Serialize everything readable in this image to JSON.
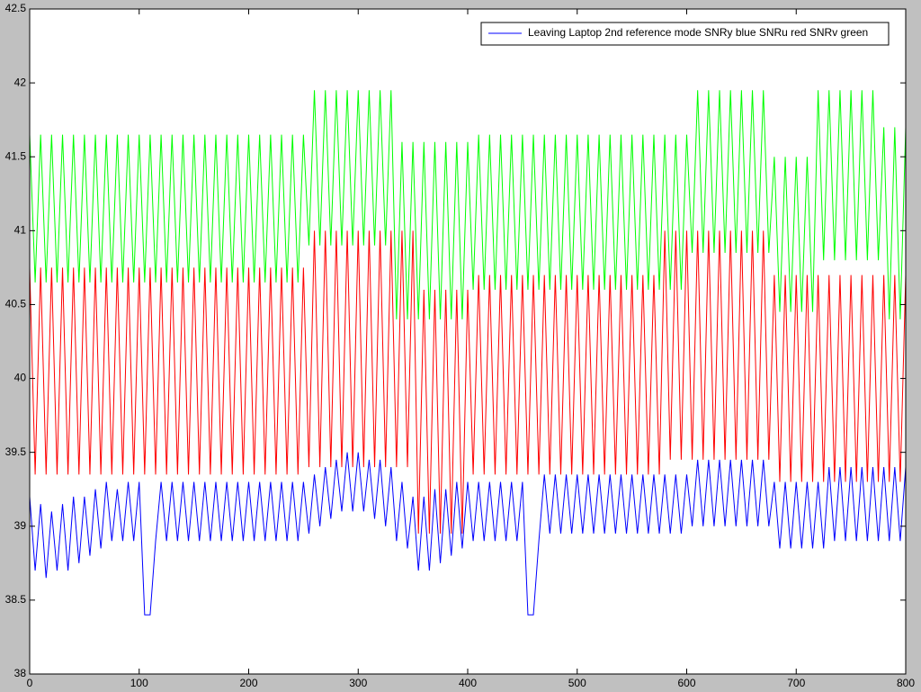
{
  "chart_data": {
    "type": "line",
    "xlim": [
      0,
      800
    ],
    "xticks": [
      0,
      100,
      200,
      300,
      400,
      500,
      600,
      700,
      800
    ],
    "ylim": [
      38,
      42.5
    ],
    "yticks": [
      38,
      38.5,
      39,
      39.5,
      40,
      40.5,
      41,
      41.5,
      42,
      42.5
    ],
    "legend": "upper right",
    "x": [
      0,
      5,
      10,
      15,
      20,
      25,
      30,
      35,
      40,
      45,
      50,
      55,
      60,
      65,
      70,
      75,
      80,
      85,
      90,
      95,
      100,
      105,
      110,
      115,
      120,
      125,
      130,
      135,
      140,
      145,
      150,
      155,
      160,
      165,
      170,
      175,
      180,
      185,
      190,
      195,
      200,
      205,
      210,
      215,
      220,
      225,
      230,
      235,
      240,
      245,
      250,
      255,
      260,
      265,
      270,
      275,
      280,
      285,
      290,
      295,
      300,
      305,
      310,
      315,
      320,
      325,
      330,
      335,
      340,
      345,
      350,
      355,
      360,
      365,
      370,
      375,
      380,
      385,
      390,
      395,
      400,
      405,
      410,
      415,
      420,
      425,
      430,
      435,
      440,
      445,
      450,
      455,
      460,
      465,
      470,
      475,
      480,
      485,
      490,
      495,
      500,
      505,
      510,
      515,
      520,
      525,
      530,
      535,
      540,
      545,
      550,
      555,
      560,
      565,
      570,
      575,
      580,
      585,
      590,
      595,
      600,
      605,
      610,
      615,
      620,
      625,
      630,
      635,
      640,
      645,
      650,
      655,
      660,
      665,
      670,
      675,
      680,
      685,
      690,
      695,
      700,
      705,
      710,
      715,
      720,
      725,
      730,
      735,
      740,
      745,
      750,
      755,
      760,
      765,
      770,
      775,
      780,
      785,
      790,
      795,
      800
    ],
    "series": [
      {
        "name": "Leaving Laptop 2nd reference mode SNRy blue SNRu red SNRv green",
        "color": "#0000ff",
        "values": [
          39.2,
          38.7,
          39.15,
          38.65,
          39.1,
          38.7,
          39.15,
          38.7,
          39.2,
          38.75,
          39.2,
          38.8,
          39.25,
          38.85,
          39.3,
          38.9,
          39.25,
          38.9,
          39.3,
          38.9,
          39.3,
          38.4,
          38.4,
          38.9,
          39.3,
          38.9,
          39.3,
          38.9,
          39.3,
          38.9,
          39.3,
          38.9,
          39.3,
          38.9,
          39.3,
          38.9,
          39.3,
          38.9,
          39.3,
          38.9,
          39.3,
          38.9,
          39.3,
          38.9,
          39.3,
          38.9,
          39.3,
          38.9,
          39.3,
          38.9,
          39.3,
          38.95,
          39.35,
          39.0,
          39.4,
          39.05,
          39.45,
          39.1,
          39.5,
          39.1,
          39.5,
          39.1,
          39.45,
          39.05,
          39.45,
          39.0,
          39.4,
          38.9,
          39.3,
          38.85,
          39.2,
          38.7,
          39.2,
          38.7,
          39.25,
          38.75,
          39.25,
          38.8,
          39.3,
          38.85,
          39.3,
          38.9,
          39.3,
          38.9,
          39.3,
          38.9,
          39.3,
          38.9,
          39.3,
          38.9,
          39.3,
          38.4,
          38.4,
          38.9,
          39.35,
          38.95,
          39.35,
          38.95,
          39.35,
          38.95,
          39.35,
          38.95,
          39.35,
          38.95,
          39.35,
          38.95,
          39.35,
          38.95,
          39.35,
          38.95,
          39.35,
          38.95,
          39.35,
          38.95,
          39.35,
          38.95,
          39.35,
          38.95,
          39.35,
          38.95,
          39.35,
          39.0,
          39.45,
          39.0,
          39.45,
          39.0,
          39.45,
          39.0,
          39.45,
          39.0,
          39.45,
          39.0,
          39.45,
          39.0,
          39.45,
          39.0,
          39.3,
          38.85,
          39.3,
          38.85,
          39.3,
          38.85,
          39.3,
          38.85,
          39.3,
          38.85,
          39.4,
          38.9,
          39.4,
          38.9,
          39.4,
          38.9,
          39.4,
          38.9,
          39.4,
          38.9,
          39.4,
          38.9,
          39.4,
          38.9,
          39.4
        ]
      },
      {
        "color": "#ff0000",
        "values": [
          40.75,
          39.35,
          40.75,
          39.35,
          40.75,
          39.35,
          40.75,
          39.35,
          40.75,
          39.35,
          40.75,
          39.35,
          40.75,
          39.35,
          40.75,
          39.35,
          40.75,
          39.35,
          40.75,
          39.35,
          40.75,
          39.35,
          40.75,
          39.35,
          40.75,
          39.35,
          40.75,
          39.35,
          40.75,
          39.35,
          40.75,
          39.35,
          40.75,
          39.35,
          40.75,
          39.35,
          40.75,
          39.35,
          40.75,
          39.35,
          40.75,
          39.35,
          40.75,
          39.35,
          40.75,
          39.35,
          40.75,
          39.35,
          40.75,
          39.35,
          40.75,
          39.4,
          41.0,
          39.4,
          41.0,
          39.4,
          41.0,
          39.4,
          41.0,
          39.4,
          41.0,
          39.4,
          41.0,
          39.4,
          41.0,
          39.4,
          41.0,
          39.4,
          41.0,
          39.4,
          41.0,
          38.95,
          40.6,
          38.95,
          40.6,
          38.95,
          40.6,
          38.95,
          40.6,
          38.95,
          40.6,
          39.35,
          40.7,
          39.35,
          40.7,
          39.35,
          40.7,
          39.35,
          40.7,
          39.35,
          40.7,
          39.35,
          40.7,
          39.35,
          40.7,
          39.35,
          40.7,
          39.35,
          40.7,
          39.35,
          40.7,
          39.35,
          40.7,
          39.35,
          40.7,
          39.35,
          40.7,
          39.35,
          40.7,
          39.35,
          40.7,
          39.35,
          40.7,
          39.35,
          40.7,
          39.35,
          41.0,
          39.45,
          41.0,
          39.45,
          41.0,
          39.45,
          41.0,
          39.45,
          41.0,
          39.45,
          41.0,
          39.45,
          41.0,
          39.45,
          41.0,
          39.45,
          41.0,
          39.45,
          41.0,
          39.45,
          40.7,
          39.3,
          40.7,
          39.3,
          40.7,
          39.3,
          40.7,
          39.3,
          40.7,
          39.3,
          40.7,
          39.3,
          40.7,
          39.3,
          40.7,
          39.3,
          40.7,
          39.3,
          40.7,
          39.3,
          40.7,
          39.3,
          40.7,
          39.3,
          40.7
        ]
      },
      {
        "color": "#00ff00",
        "values": [
          41.65,
          40.65,
          41.65,
          40.65,
          41.65,
          40.65,
          41.65,
          40.65,
          41.65,
          40.65,
          41.65,
          40.65,
          41.65,
          40.65,
          41.65,
          40.65,
          41.65,
          40.65,
          41.65,
          40.65,
          41.65,
          40.65,
          41.65,
          40.65,
          41.65,
          40.65,
          41.65,
          40.65,
          41.65,
          40.65,
          41.65,
          40.65,
          41.65,
          40.65,
          41.65,
          40.65,
          41.65,
          40.65,
          41.65,
          40.65,
          41.65,
          40.65,
          41.65,
          40.65,
          41.65,
          40.65,
          41.65,
          40.65,
          41.65,
          40.65,
          41.65,
          40.9,
          41.95,
          40.9,
          41.95,
          40.9,
          41.95,
          40.9,
          41.95,
          40.9,
          41.95,
          40.9,
          41.95,
          40.9,
          41.95,
          40.9,
          41.95,
          40.4,
          41.6,
          40.4,
          41.6,
          40.4,
          41.6,
          40.4,
          41.6,
          40.4,
          41.6,
          40.4,
          41.6,
          40.4,
          41.6,
          40.6,
          41.65,
          40.6,
          41.65,
          40.6,
          41.65,
          40.6,
          41.65,
          40.6,
          41.65,
          40.6,
          41.65,
          40.6,
          41.65,
          40.6,
          41.65,
          40.6,
          41.65,
          40.6,
          41.65,
          40.6,
          41.65,
          40.6,
          41.65,
          40.6,
          41.65,
          40.6,
          41.65,
          40.6,
          41.65,
          40.6,
          41.65,
          40.6,
          41.65,
          40.6,
          41.65,
          40.6,
          41.65,
          40.6,
          41.65,
          40.85,
          41.95,
          40.85,
          41.95,
          40.85,
          41.95,
          40.85,
          41.95,
          40.85,
          41.95,
          40.85,
          41.95,
          40.85,
          41.95,
          40.85,
          41.5,
          40.45,
          41.5,
          40.45,
          41.5,
          40.45,
          41.5,
          40.45,
          41.95,
          40.8,
          41.95,
          40.8,
          41.95,
          40.8,
          41.95,
          40.8,
          41.95,
          40.8,
          41.95,
          40.8,
          41.7,
          40.4,
          41.7,
          40.4,
          41.7
        ]
      }
    ]
  }
}
